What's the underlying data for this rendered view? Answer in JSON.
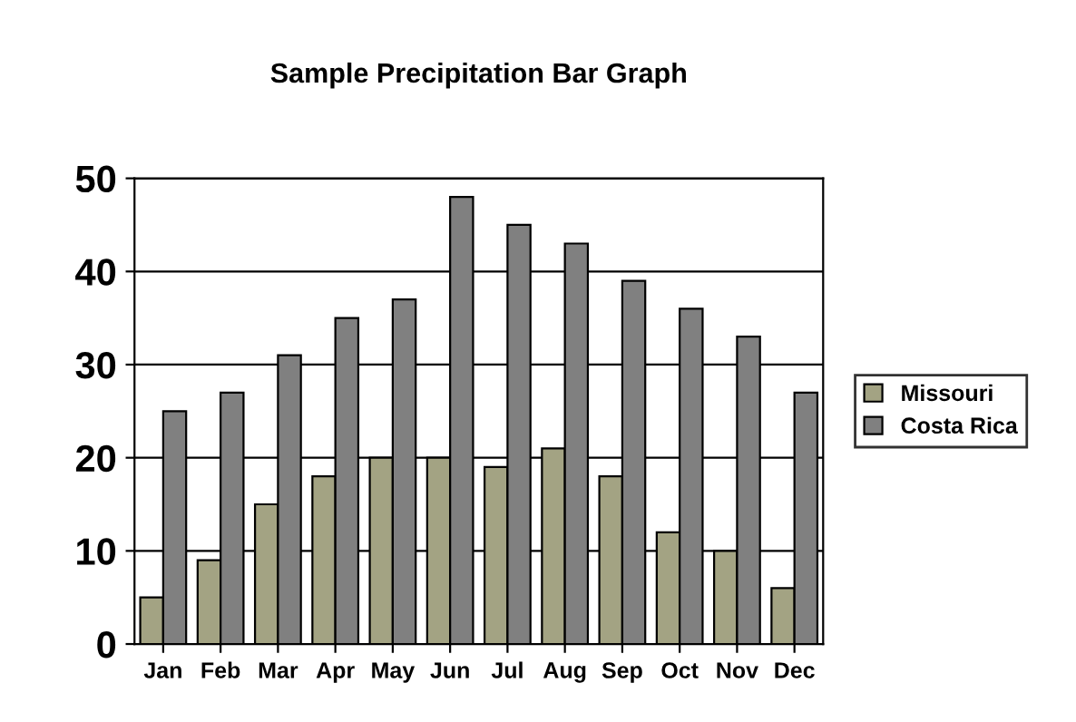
{
  "chart_data": {
    "type": "bar",
    "title": "Sample Precipitation Bar Graph",
    "categories": [
      "Jan",
      "Feb",
      "Mar",
      "Apr",
      "May",
      "Jun",
      "Jul",
      "Aug",
      "Sep",
      "Oct",
      "Nov",
      "Dec"
    ],
    "series": [
      {
        "name": "Missouri",
        "color": "#a3a383",
        "values": [
          5,
          9,
          15,
          18,
          20,
          20,
          19,
          21,
          18,
          12,
          10,
          6
        ]
      },
      {
        "name": "Costa Rica",
        "color": "#808080",
        "values": [
          25,
          27,
          31,
          35,
          37,
          48,
          45,
          43,
          39,
          36,
          33,
          27
        ]
      }
    ],
    "ylim": [
      0,
      50
    ],
    "yticks": [
      0,
      10,
      20,
      30,
      40,
      50
    ],
    "grid": "y",
    "legend": "right"
  }
}
